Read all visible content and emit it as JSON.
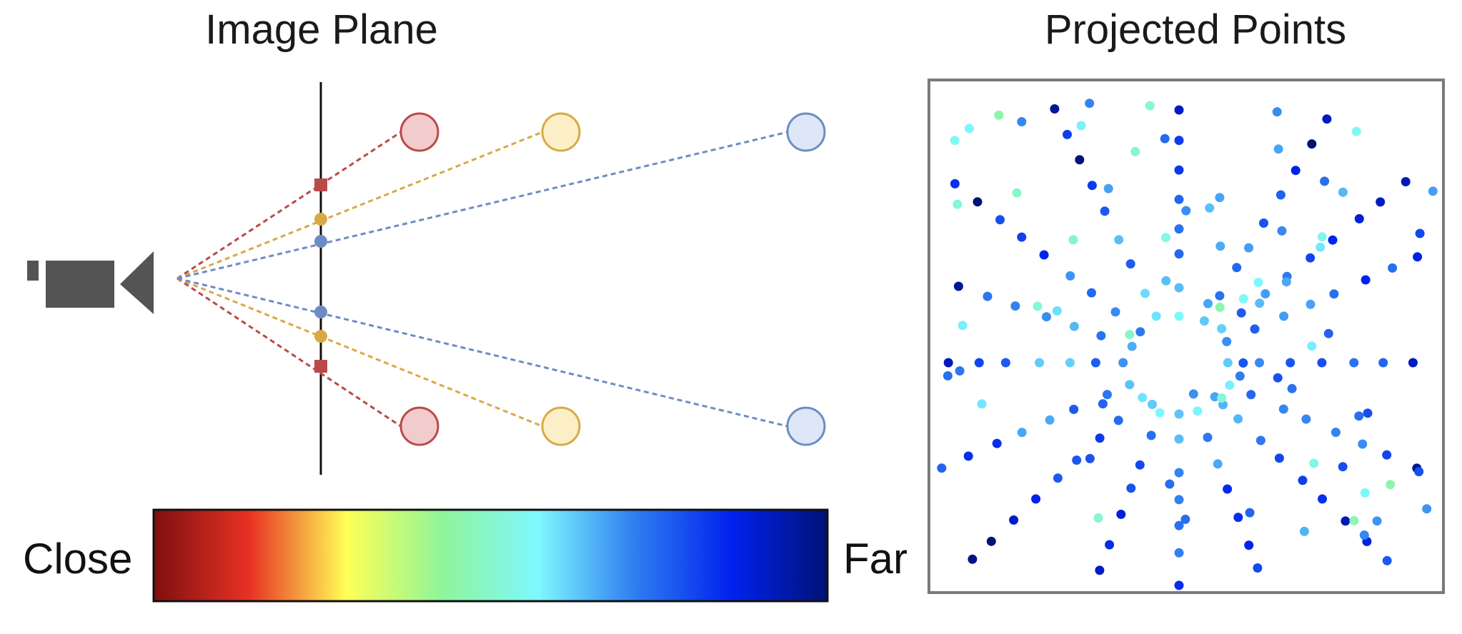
{
  "left_panel": {
    "title": "Image Plane"
  },
  "right_panel": {
    "title": "Projected Points"
  },
  "colorbar": {
    "close_label": "Close",
    "far_label": "Far",
    "stops": [
      "#7f0f0f",
      "#e83224",
      "#ffff55",
      "#8ff59a",
      "#7ef8ff",
      "#2f7df0",
      "#0022ee",
      "#001177"
    ]
  },
  "colors": {
    "near": "#b94a48",
    "near_fill": "#f2cccc",
    "mid": "#d9a945",
    "mid_fill": "#fcefc8",
    "far": "#6d8cc4",
    "far_fill": "#dde7f7",
    "camera": "#545454"
  }
}
